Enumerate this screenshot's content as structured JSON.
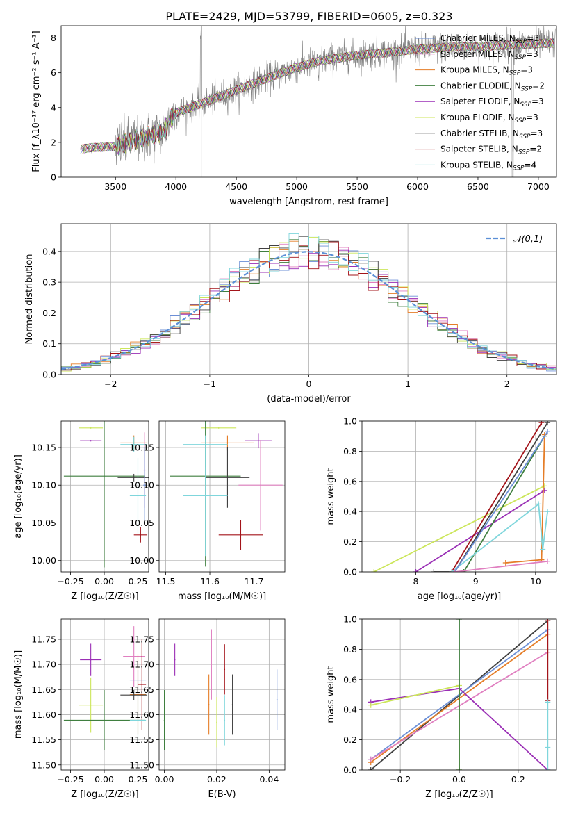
{
  "figure": {
    "title": "PLATE=2429, MJD=53799, FIBERID=0605, z=0.323"
  },
  "colors": {
    "Chabrier MILES": "#6b8fd6",
    "Salpeter MILES": "#e07fc0",
    "Kroupa MILES": "#e57d27",
    "Chabrier ELODIE": "#3f7f3f",
    "Salpeter ELODIE": "#9a2fb5",
    "Kroupa ELODIE": "#cce65a",
    "Chabrier STELIB": "#404040",
    "Salpeter STELIB": "#a3141a",
    "Kroupa STELIB": "#7fd6dc",
    "data": "#808080",
    "normal": "#5b8fd6"
  },
  "chart_data": [
    {
      "id": "spectrum",
      "type": "line",
      "xlabel": "wavelength [Angstrom, rest frame]",
      "ylabel": "Flux [f_λ10⁻¹⁷ erg cm⁻² s⁻¹ A⁻¹]",
      "xlim": [
        3050,
        7150
      ],
      "ylim": [
        0,
        8.7
      ],
      "xticks": [
        3500,
        4000,
        4500,
        5000,
        5500,
        6000,
        6500,
        7000
      ],
      "yticks": [
        0,
        2,
        4,
        6,
        8
      ],
      "grid": false,
      "legend_position": "right",
      "series": [
        {
          "name": "Chabrier MILES, N_SSP=3"
        },
        {
          "name": "Salpeter MILES, N_SSP=3"
        },
        {
          "name": "Kroupa MILES, N_SSP=3"
        },
        {
          "name": "Chabrier ELODIE, N_SSP=2"
        },
        {
          "name": "Salpeter ELODIE, N_SSP=3"
        },
        {
          "name": "Kroupa ELODIE, N_SSP=3"
        },
        {
          "name": "Chabrier STELIB, N_SSP=3"
        },
        {
          "name": "Salpeter STELIB, N_SSP=2"
        },
        {
          "name": "Kroupa STELIB, N_SSP=4"
        }
      ],
      "continuum_knots": {
        "x": [
          3200,
          3300,
          3500,
          3700,
          3900,
          3950,
          4000,
          4200,
          4500,
          4800,
          5000,
          5200,
          5500,
          5800,
          6000,
          6200,
          6500,
          6800,
          7100
        ],
        "y": [
          1.6,
          1.7,
          1.75,
          2.2,
          2.6,
          3.3,
          3.7,
          4.2,
          5.0,
          5.8,
          6.3,
          6.7,
          7.0,
          7.2,
          7.35,
          7.45,
          7.5,
          7.6,
          7.7
        ]
      }
    },
    {
      "id": "residuals",
      "type": "histogram",
      "xlabel": "(data-model)/error",
      "ylabel": "Normed distribution",
      "xlim": [
        -2.5,
        2.5
      ],
      "ylim": [
        0,
        0.49
      ],
      "xticks": [
        -2,
        -1,
        0,
        1,
        2
      ],
      "yticks": [
        0.0,
        0.1,
        0.2,
        0.3,
        0.4
      ],
      "grid": true,
      "legend": "𝒩(0,1)",
      "legend_position": "top-right",
      "bin_width": 0.1,
      "bins_from": -2.5,
      "bins_to": 2.5
    },
    {
      "id": "age-vs-Z",
      "type": "errorbar",
      "xlabel": "Z [log₁₀(Z/Z☉)]",
      "ylabel": "age  [log₁₀(age/yr)]",
      "xlim": [
        -0.32,
        0.33
      ],
      "ylim": [
        9.985,
        10.185
      ],
      "xticks": [
        -0.25,
        0.0,
        0.25
      ],
      "yticks": [
        10.0,
        10.05,
        10.1,
        10.15
      ],
      "grid": true,
      "points": [
        {
          "model": "Kroupa ELODIE",
          "x": -0.1,
          "xerr": 0.09,
          "y": 10.176,
          "yerr": 0.001
        },
        {
          "model": "Salpeter ELODIE",
          "x": -0.1,
          "xerr": 0.08,
          "y": 10.159,
          "yerr": 0.001
        },
        {
          "model": "Chabrier ELODIE",
          "x": 0.0,
          "xerr": 0.3,
          "y": 10.112,
          "yerr": 0.121
        },
        {
          "model": "Kroupa MILES",
          "x": 0.22,
          "xerr": 0.1,
          "y": 10.156,
          "yerr": 0.01
        },
        {
          "model": "Kroupa STELIB",
          "x": 0.22,
          "xerr": 0.1,
          "y": 10.154,
          "yerr": 0.01
        },
        {
          "model": "Chabrier STELIB",
          "x": 0.22,
          "xerr": 0.12,
          "y": 10.11,
          "yerr": 0.005
        },
        {
          "model": "Salpeter MILES",
          "x": 0.3,
          "xerr": 0.01,
          "y": 10.12,
          "yerr": 0.05
        },
        {
          "model": "Chabrier MILES",
          "x": 0.3,
          "xerr": 0.01,
          "y": 10.1,
          "yerr": 0.05
        },
        {
          "model": "Kroupa STELIB",
          "x": 0.25,
          "xerr": 0.06,
          "y": 10.086,
          "yerr": 0.05
        },
        {
          "model": "Salpeter STELIB",
          "x": 0.27,
          "xerr": 0.05,
          "y": 10.034,
          "yerr": 0.01
        }
      ]
    },
    {
      "id": "age-vs-mass",
      "type": "errorbar",
      "xlabel": "mass [log₁₀(M/M☉)]",
      "ylabel": "",
      "xlim": [
        11.485,
        11.77
      ],
      "ylim": [
        9.985,
        10.185
      ],
      "xticks": [
        11.5,
        11.6,
        11.7
      ],
      "yticks": [
        10.0,
        10.05,
        10.1,
        10.15
      ],
      "grid": true,
      "points": [
        {
          "model": "Kroupa ELODIE",
          "x": 11.62,
          "xerr": 0.04,
          "y": 10.176,
          "yerr": 0.001
        },
        {
          "model": "Salpeter ELODIE",
          "x": 11.71,
          "xerr": 0.03,
          "y": 10.159,
          "yerr": 0.01
        },
        {
          "model": "Kroupa MILES",
          "x": 11.64,
          "xerr": 0.06,
          "y": 10.156,
          "yerr": 0.01
        },
        {
          "model": "Kroupa STELIB",
          "x": 11.59,
          "xerr": 0.05,
          "y": 10.154,
          "yerr": 0.03
        },
        {
          "model": "Chabrier ELODIE",
          "x": 11.59,
          "xerr": 0.08,
          "y": 10.112,
          "yerr": 0.12
        },
        {
          "model": "Chabrier STELIB",
          "x": 11.64,
          "xerr": 0.05,
          "y": 10.11,
          "yerr": 0.04
        },
        {
          "model": "Salpeter MILES",
          "x": 11.715,
          "xerr": 0.05,
          "y": 10.1,
          "yerr": 0.06
        },
        {
          "model": "Kroupa STELIB",
          "x": 11.59,
          "xerr": 0.05,
          "y": 10.086,
          "yerr": 0.08
        },
        {
          "model": "Salpeter STELIB",
          "x": 11.67,
          "xerr": 0.05,
          "y": 10.034,
          "yerr": 0.02
        }
      ]
    },
    {
      "id": "weight-vs-age",
      "type": "line",
      "xlabel": "age  [log₁₀(age/yr)]",
      "ylabel": "mass weight",
      "xlim": [
        7.1,
        10.35
      ],
      "ylim": [
        0,
        1.0
      ],
      "xticks": [
        8,
        9,
        10
      ],
      "yticks": [
        0.0,
        0.2,
        0.4,
        0.6,
        0.8,
        1.0
      ],
      "grid": true,
      "series": [
        {
          "model": "Kroupa ELODIE",
          "x": [
            7.3,
            10.15
          ],
          "y": [
            0.0,
            0.57
          ]
        },
        {
          "model": "Salpeter ELODIE",
          "x": [
            8.0,
            10.15
          ],
          "y": [
            0.0,
            0.54
          ]
        },
        {
          "model": "Chabrier STELIB",
          "x": [
            8.3,
            8.65,
            10.2
          ],
          "y": [
            0.0,
            0.0,
            0.99
          ]
        },
        {
          "model": "Salpeter STELIB",
          "x": [
            8.6,
            10.1
          ],
          "y": [
            0.0,
            0.99
          ]
        },
        {
          "model": "Chabrier ELODIE",
          "x": [
            8.8,
            10.15
          ],
          "y": [
            0.0,
            0.9
          ]
        },
        {
          "model": "Kroupa MILES",
          "x": [
            9.5,
            10.1,
            10.15
          ],
          "y": [
            0.06,
            0.08,
            0.91
          ]
        },
        {
          "model": "Kroupa STELIB",
          "x": [
            8.6,
            10.05,
            10.12,
            10.2
          ],
          "y": [
            0.0,
            0.45,
            0.15,
            0.4
          ]
        },
        {
          "model": "Chabrier MILES",
          "x": [
            8.65,
            10.2
          ],
          "y": [
            0.0,
            0.93
          ]
        },
        {
          "model": "Salpeter MILES",
          "x": [
            8.65,
            10.2
          ],
          "y": [
            0.0,
            0.07
          ]
        }
      ]
    },
    {
      "id": "mass-vs-Z",
      "type": "errorbar",
      "xlabel": "Z [log₁₀(Z/Z☉)]",
      "ylabel": "mass [log₁₀(M/M☉)]",
      "xlim": [
        -0.32,
        0.33
      ],
      "ylim": [
        11.49,
        11.79
      ],
      "xticks": [
        -0.25,
        0.0,
        0.25
      ],
      "yticks": [
        11.5,
        11.55,
        11.6,
        11.65,
        11.7,
        11.75
      ],
      "grid": true,
      "points": [
        {
          "model": "Salpeter ELODIE",
          "x": -0.1,
          "xerr": 0.08,
          "y": 11.709,
          "yerr": 0.032
        },
        {
          "model": "Kroupa ELODIE",
          "x": -0.1,
          "xerr": 0.09,
          "y": 11.619,
          "yerr": 0.055
        },
        {
          "model": "Chabrier ELODIE",
          "x": 0.0,
          "xerr": 0.3,
          "y": 11.589,
          "yerr": 0.06
        },
        {
          "model": "Salpeter MILES",
          "x": 0.22,
          "xerr": 0.08,
          "y": 11.716,
          "yerr": 0.06
        },
        {
          "model": "Chabrier MILES",
          "x": 0.25,
          "xerr": 0.06,
          "y": 11.669,
          "yerr": 0.02
        },
        {
          "model": "Kroupa MILES",
          "x": 0.25,
          "xerr": 0.06,
          "y": 11.64,
          "yerr": 0.08
        },
        {
          "model": "Chabrier STELIB",
          "x": 0.22,
          "xerr": 0.1,
          "y": 11.639,
          "yerr": 0.01
        },
        {
          "model": "Salpeter STELIB",
          "x": 0.28,
          "xerr": 0.03,
          "y": 11.66,
          "yerr": 0.09
        },
        {
          "model": "Kroupa STELIB",
          "x": 0.25,
          "xerr": 0.06,
          "y": 11.589,
          "yerr": 0.05
        }
      ]
    },
    {
      "id": "mass-vs-EBV",
      "type": "errorbar",
      "xlabel": "E(B-V)",
      "ylabel": "",
      "xlim": [
        -0.002,
        0.046
      ],
      "ylim": [
        11.49,
        11.79
      ],
      "xticks": [
        0.0,
        0.02,
        0.04
      ],
      "yticks": [
        11.5,
        11.55,
        11.6,
        11.65,
        11.7,
        11.75
      ],
      "grid": true,
      "points": [
        {
          "model": "Chabrier ELODIE",
          "x": 0.0,
          "xerr": 0.0,
          "y": 11.589,
          "yerr": 0.06
        },
        {
          "model": "Salpeter ELODIE",
          "x": 0.004,
          "xerr": 0.0,
          "y": 11.709,
          "yerr": 0.032
        },
        {
          "model": "Kroupa MILES",
          "x": 0.017,
          "xerr": 0.0,
          "y": 11.62,
          "yerr": 0.06
        },
        {
          "model": "Salpeter MILES",
          "x": 0.018,
          "xerr": 0.0,
          "y": 11.7,
          "yerr": 0.07
        },
        {
          "model": "Kroupa ELODIE",
          "x": 0.02,
          "xerr": 0.0,
          "y": 11.585,
          "yerr": 0.05
        },
        {
          "model": "Salpeter STELIB",
          "x": 0.023,
          "xerr": 0.0,
          "y": 11.69,
          "yerr": 0.05
        },
        {
          "model": "Kroupa STELIB",
          "x": 0.023,
          "xerr": 0.0,
          "y": 11.589,
          "yerr": 0.05
        },
        {
          "model": "Chabrier STELIB",
          "x": 0.026,
          "xerr": 0.0,
          "y": 11.62,
          "yerr": 0.06
        },
        {
          "model": "Chabrier MILES",
          "x": 0.043,
          "xerr": 0.0,
          "y": 11.63,
          "yerr": 0.06
        }
      ]
    },
    {
      "id": "weight-vs-Z",
      "type": "line",
      "xlabel": "Z [log₁₀(Z/Z☉)]",
      "ylabel": "mass weight",
      "xlim": [
        -0.33,
        0.33
      ],
      "ylim": [
        0,
        1.0
      ],
      "xticks": [
        -0.2,
        0.0,
        0.2
      ],
      "yticks": [
        0.0,
        0.2,
        0.4,
        0.6,
        0.8,
        1.0
      ],
      "grid": true,
      "series": [
        {
          "model": "Chabrier STELIB",
          "x": [
            -0.3,
            0.3
          ],
          "y": [
            0.0,
            0.99
          ]
        },
        {
          "model": "Chabrier MILES",
          "x": [
            -0.3,
            0.3
          ],
          "y": [
            0.07,
            0.93
          ]
        },
        {
          "model": "Kroupa MILES",
          "x": [
            -0.3,
            0.3
          ],
          "y": [
            0.05,
            0.9
          ]
        },
        {
          "model": "Salpeter MILES",
          "x": [
            -0.3,
            0.3
          ],
          "y": [
            0.07,
            0.78
          ]
        },
        {
          "model": "Salpeter ELODIE",
          "x": [
            -0.3,
            0.0,
            0.3
          ],
          "y": [
            0.45,
            0.54,
            0.0
          ]
        },
        {
          "model": "Kroupa ELODIE",
          "x": [
            -0.3,
            0.0,
            0.0
          ],
          "y": [
            0.43,
            0.56,
            0.0
          ]
        },
        {
          "model": "Chabrier ELODIE",
          "x": [
            0.0,
            0.0
          ],
          "y": [
            0.0,
            1.0
          ]
        },
        {
          "model": "Salpeter STELIB",
          "x": [
            0.3,
            0.3
          ],
          "y": [
            0.46,
            0.99
          ]
        },
        {
          "model": "Kroupa STELIB",
          "x": [
            0.3,
            0.3,
            0.3
          ],
          "y": [
            0.0,
            0.45,
            0.15
          ]
        }
      ]
    }
  ]
}
